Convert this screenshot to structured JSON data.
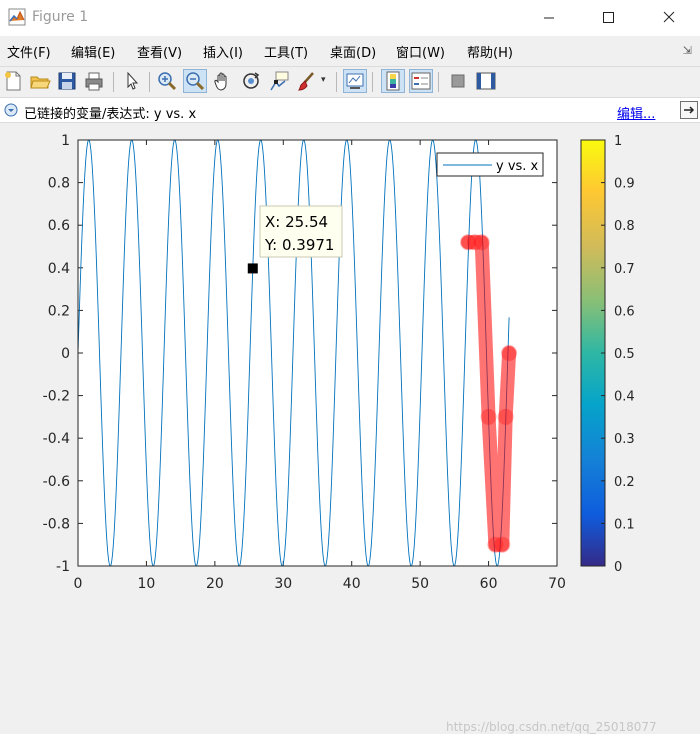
{
  "window": {
    "title": "Figure 1"
  },
  "menu": [
    {
      "label": "文件(F)"
    },
    {
      "label": "编辑(E)"
    },
    {
      "label": "查看(V)"
    },
    {
      "label": "插入(I)"
    },
    {
      "label": "工具(T)"
    },
    {
      "label": "桌面(D)"
    },
    {
      "label": "窗口(W)"
    },
    {
      "label": "帮助(H)"
    }
  ],
  "toolbar": {
    "icons": [
      "new-figure-icon",
      "open-icon",
      "save-icon",
      "print-icon",
      "pointer-icon",
      "zoom-in-icon",
      "zoom-out-icon",
      "pan-icon",
      "rotate-icon",
      "data-cursor-icon",
      "brush-icon",
      "link-plot-icon",
      "colorbar-icon",
      "legend-icon",
      "hide-plot-tools-icon",
      "show-plot-tools-icon"
    ],
    "active": [
      "zoom-out-icon",
      "link-plot-icon",
      "colorbar-icon",
      "legend-icon"
    ]
  },
  "linkbar": {
    "text": "已链接的变量/表达式: y vs. x",
    "edit_label": "编辑..."
  },
  "chart_data": {
    "type": "line",
    "series": [
      {
        "name": "y vs. x",
        "function": "sin(x)",
        "x_range": [
          0,
          63
        ],
        "color": "#0072bd"
      }
    ],
    "brushed": {
      "color": "#ff0000",
      "points": [
        [
          57,
          0.52
        ],
        [
          58,
          0.52
        ],
        [
          59,
          0.52
        ],
        [
          60,
          -0.3
        ],
        [
          61,
          -0.9
        ],
        [
          62,
          -0.9
        ],
        [
          62.5,
          -0.3
        ],
        [
          63,
          0.0
        ]
      ]
    },
    "xlim": [
      0,
      70
    ],
    "ylim": [
      -1,
      1
    ],
    "xticks": [
      "0",
      "10",
      "20",
      "30",
      "40",
      "50",
      "60",
      "70"
    ],
    "yticks": [
      "1",
      "0.8",
      "0.6",
      "0.4",
      "0.2",
      "0",
      "-0.2",
      "-0.4",
      "-0.6",
      "-0.8",
      "-1"
    ],
    "legend": {
      "entry": "y vs. x",
      "placement": "top-right"
    },
    "datatip": {
      "x": 25.54,
      "y": 0.3971,
      "line1": "X: 25.54",
      "line2": "Y: 0.3971"
    },
    "colorbar": {
      "min": 0,
      "max": 1,
      "ticks": [
        "1",
        "0.9",
        "0.8",
        "0.7",
        "0.6",
        "0.5",
        "0.4",
        "0.3",
        "0.2",
        "0.1",
        "0"
      ]
    }
  },
  "watermark": "https://blog.csdn.net/qq_25018077"
}
